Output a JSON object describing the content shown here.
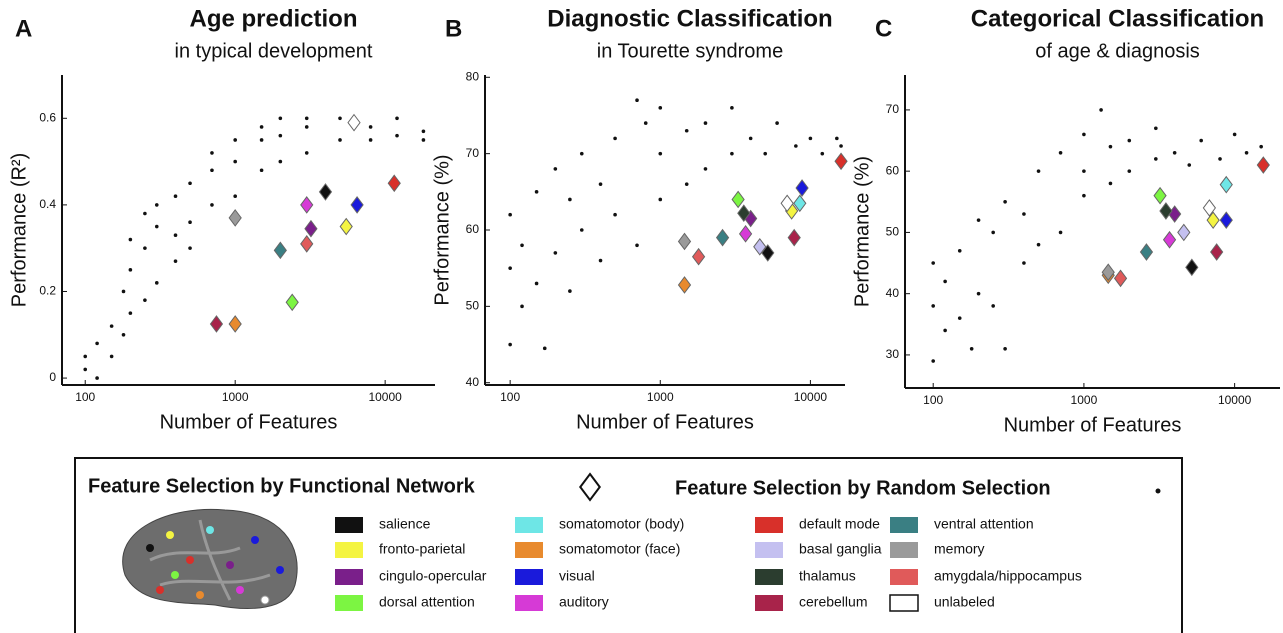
{
  "chart_data": [
    {
      "type": "scatter",
      "panel": "A",
      "title": "Age prediction",
      "subtitle": "in typical development",
      "x_label": "Number of Features",
      "y_label": "Performance (R²)",
      "log_x": true,
      "xlim": [
        70,
        21500
      ],
      "ylim": [
        -0.016,
        0.7
      ],
      "xticks": [
        100,
        1000,
        10000
      ],
      "yticks": [
        0,
        0.2,
        0.4,
        0.6
      ],
      "random": {
        "x": [
          100,
          100,
          120,
          120,
          150,
          150,
          180,
          180,
          200,
          200,
          200,
          250,
          250,
          250,
          300,
          300,
          300,
          400,
          400,
          400,
          500,
          500,
          500,
          700,
          700,
          700,
          1000,
          1000,
          1000,
          1500,
          1500,
          1500,
          2000,
          2000,
          2000,
          3000,
          3000,
          3000,
          5000,
          5000,
          8000,
          8000,
          12000,
          12000,
          18000,
          18000
        ],
        "values": [
          0.02,
          0.05,
          0.08,
          0,
          0.12,
          0.05,
          0.2,
          0.1,
          0.25,
          0.15,
          0.32,
          0.3,
          0.18,
          0.38,
          0.35,
          0.22,
          0.4,
          0.33,
          0.42,
          0.27,
          0.45,
          0.36,
          0.3,
          0.48,
          0.4,
          0.52,
          0.5,
          0.42,
          0.55,
          0.55,
          0.48,
          0.58,
          0.6,
          0.5,
          0.56,
          0.58,
          0.52,
          0.6,
          0.6,
          0.55,
          0.58,
          0.55,
          0.6,
          0.56,
          0.57,
          0.55
        ]
      },
      "network_x": [
        4000,
        5500,
        3200,
        2400,
        null,
        1000,
        6500,
        3000,
        11500,
        null,
        null,
        750,
        2000,
        1000,
        3000,
        6200
      ],
      "network_values": [
        0.43,
        0.35,
        0.345,
        0.175,
        null,
        0.125,
        0.4,
        0.4,
        0.45,
        null,
        null,
        0.125,
        0.295,
        0.37,
        0.31,
        0.59
      ]
    },
    {
      "type": "scatter",
      "panel": "B",
      "title": "Diagnostic Classification",
      "subtitle": "in Tourette syndrome",
      "x_label": "Number of Features",
      "y_label": "Performance (%)",
      "log_x": true,
      "xlim": [
        68,
        17000
      ],
      "ylim": [
        39.7,
        80.3
      ],
      "xticks": [
        100,
        1000,
        10000
      ],
      "yticks": [
        40,
        50,
        60,
        70,
        80
      ],
      "random": {
        "x": [
          100,
          100,
          100,
          120,
          120,
          150,
          150,
          170,
          200,
          200,
          250,
          250,
          300,
          300,
          400,
          400,
          500,
          500,
          700,
          700,
          800,
          1000,
          1000,
          1000,
          1500,
          1500,
          2000,
          2000,
          3000,
          3000,
          4000,
          5000,
          6000,
          8000,
          10000,
          12000,
          15000,
          16000
        ],
        "values": [
          45,
          55,
          62,
          50,
          58,
          53,
          65,
          44.5,
          57,
          68,
          52,
          64,
          60,
          70,
          56,
          66,
          62,
          72,
          58,
          77,
          74,
          64,
          70,
          76,
          66,
          73,
          68,
          74,
          70,
          76,
          72,
          70,
          74,
          71,
          72,
          70,
          72,
          71
        ]
      },
      "network_x": [
        5200,
        7500,
        4000,
        3300,
        8500,
        1450,
        8800,
        3700,
        16000,
        4600,
        3600,
        7800,
        2600,
        1450,
        1800,
        7000
      ],
      "network_values": [
        57,
        62.5,
        61.5,
        64,
        63.5,
        52.8,
        65.5,
        59.5,
        69,
        57.8,
        62.2,
        59,
        59,
        58.5,
        56.5,
        63.5
      ]
    },
    {
      "type": "scatter",
      "panel": "C",
      "title": "Categorical Classification",
      "subtitle": "of age & diagnosis",
      "x_label": "Number of Features",
      "y_label": "Performance (%)",
      "log_x": true,
      "xlim": [
        65,
        20000
      ],
      "ylim": [
        24.6,
        75.7
      ],
      "xticks": [
        100,
        1000,
        10000
      ],
      "yticks": [
        30,
        40,
        50,
        60,
        70
      ],
      "random": {
        "x": [
          100,
          100,
          100,
          120,
          120,
          150,
          150,
          180,
          200,
          200,
          250,
          250,
          300,
          300,
          400,
          400,
          500,
          500,
          700,
          700,
          1000,
          1000,
          1000,
          1300,
          1500,
          1500,
          2000,
          2000,
          3000,
          3000,
          4000,
          5000,
          6000,
          8000,
          10000,
          12000,
          15000
        ],
        "values": [
          29,
          38,
          45,
          34,
          42,
          36,
          47,
          31,
          40,
          52,
          38,
          50,
          31,
          55,
          45,
          53,
          48,
          60,
          50,
          63,
          56,
          60,
          66,
          70,
          58,
          64,
          60,
          65,
          62,
          67,
          63,
          61,
          65,
          62,
          66,
          63,
          64
        ]
      },
      "network_x": [
        5200,
        7200,
        4000,
        3200,
        8800,
        1450,
        8800,
        3700,
        15500,
        4600,
        3500,
        7600,
        2600,
        1450,
        1750,
        6800
      ],
      "network_values": [
        44.3,
        52,
        53,
        56,
        57.8,
        43,
        52,
        48.8,
        61,
        50,
        53.5,
        46.8,
        46.8,
        43.5,
        42.5,
        54
      ]
    }
  ],
  "networks": [
    {
      "name": "salience",
      "color": "#111111"
    },
    {
      "name": "fronto-parietal",
      "color": "#f4f442"
    },
    {
      "name": "cingulo-opercular",
      "color": "#7a1f8a"
    },
    {
      "name": "dorsal attention",
      "color": "#7cf542"
    },
    {
      "name": "somatomotor (body)",
      "color": "#6ee6e6"
    },
    {
      "name": "somatomotor (face)",
      "color": "#e88a2e"
    },
    {
      "name": "visual",
      "color": "#1a1adb"
    },
    {
      "name": "auditory",
      "color": "#d63ad6"
    },
    {
      "name": "default mode",
      "color": "#d8302a"
    },
    {
      "name": "basal ganglia",
      "color": "#c4c0f0"
    },
    {
      "name": "thalamus",
      "color": "#2b3d2f"
    },
    {
      "name": "cerebellum",
      "color": "#a8234a"
    },
    {
      "name": "ventral attention",
      "color": "#3a7f83"
    },
    {
      "name": "memory",
      "color": "#9a9a9a"
    },
    {
      "name": "amygdala/hippocampus",
      "color": "#e05a5a"
    },
    {
      "name": "unlabeled",
      "color": "#ffffff"
    }
  ],
  "legend": {
    "functional_title": "Feature Selection by Functional Network",
    "random_title": "Feature Selection by Random Selection"
  }
}
